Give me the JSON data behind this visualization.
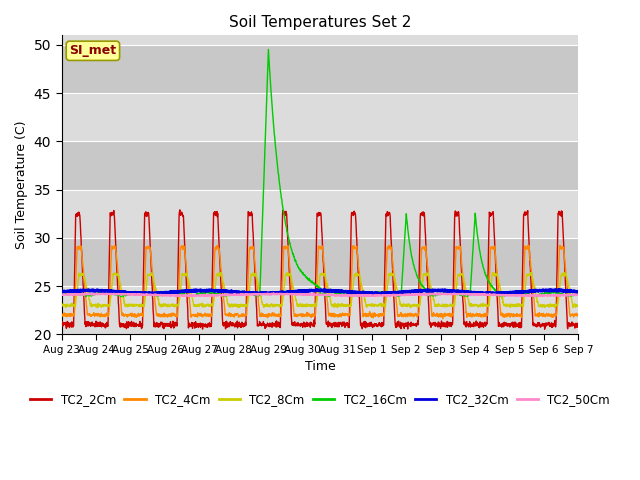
{
  "title": "Soil Temperatures Set 2",
  "xlabel": "Time",
  "ylabel": "Soil Temperature (C)",
  "ylim": [
    20,
    51
  ],
  "yticks": [
    20,
    25,
    30,
    35,
    40,
    45,
    50
  ],
  "bg_color": "#dcdcdc",
  "bg_band_colors": [
    "#dcdcdc",
    "#c8c8c8"
  ],
  "annotation_text": "SI_met",
  "annotation_color": "#8b0000",
  "annotation_bg": "#ffff99",
  "annotation_edge": "#999900",
  "series_order": [
    "TC2_2Cm",
    "TC2_4Cm",
    "TC2_8Cm",
    "TC2_16Cm",
    "TC2_32Cm",
    "TC2_50Cm"
  ],
  "series": {
    "TC2_2Cm": {
      "color": "#cc0000",
      "lw": 1.0
    },
    "TC2_4Cm": {
      "color": "#ff8800",
      "lw": 1.0
    },
    "TC2_8Cm": {
      "color": "#cccc00",
      "lw": 1.0
    },
    "TC2_16Cm": {
      "color": "#00cc00",
      "lw": 1.0
    },
    "TC2_32Cm": {
      "color": "#0000dd",
      "lw": 2.2
    },
    "TC2_50Cm": {
      "color": "#ff88cc",
      "lw": 1.5
    }
  },
  "xtick_labels": [
    "Aug 23",
    "Aug 24",
    "Aug 25",
    "Aug 26",
    "Aug 27",
    "Aug 28",
    "Aug 29",
    "Aug 30",
    "Aug 31",
    "Sep 1",
    "Sep 2",
    "Sep 3",
    "Sep 4",
    "Sep 5",
    "Sep 6",
    "Sep 7"
  ],
  "legend_colors": [
    "#cc0000",
    "#ff8800",
    "#cccc00",
    "#00cc00",
    "#0000dd",
    "#ff88cc"
  ],
  "legend_labels": [
    "TC2_2Cm",
    "TC2_4Cm",
    "TC2_8Cm",
    "TC2_16Cm",
    "TC2_32Cm",
    "TC2_50Cm"
  ],
  "n_days": 15,
  "pts_per_day": 144
}
